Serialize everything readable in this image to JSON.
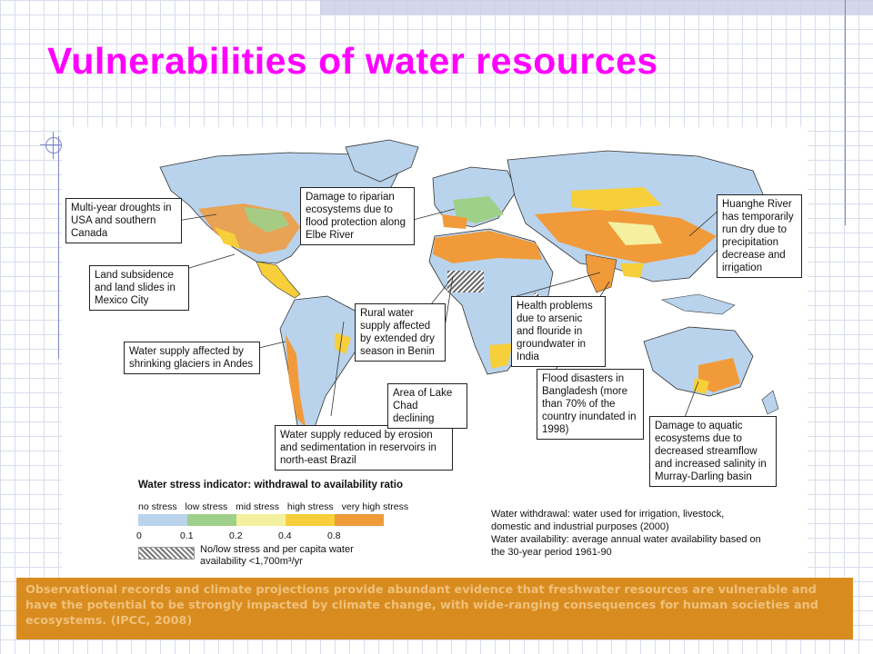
{
  "slide": {
    "title": "Vulnerabilities of water resources",
    "caption": "Observational records and climate projections provide abundant evidence that freshwater resources are vulnerable and have the potential to be strongly impacted by climate change, with wide-ranging consequences for human societies and ecosystems. (IPCC, 2008)"
  },
  "callouts": [
    {
      "id": "usa",
      "text": "Multi-year droughts in USA and southern Canada"
    },
    {
      "id": "mexico",
      "text": "Land subsidence and land slides in Mexico City"
    },
    {
      "id": "andes",
      "text": "Water supply affected by shrinking glaciers in Andes"
    },
    {
      "id": "brazil",
      "text": "Water supply reduced by erosion and sedimentation in reservoirs in north-east Brazil"
    },
    {
      "id": "elbe",
      "text": "Damage to riparian ecosystems due to flood protection along Elbe River"
    },
    {
      "id": "benin",
      "text": "Rural water supply affected by extended dry season in Benin"
    },
    {
      "id": "chad",
      "text": "Area of Lake Chad declining"
    },
    {
      "id": "india",
      "text": "Health problems due to arsenic and flouride in groundwater in India"
    },
    {
      "id": "bangladesh",
      "text": "Flood disasters in Bangladesh (more than 70% of the country inundated in 1998)"
    },
    {
      "id": "huanghe",
      "text": "Huanghe River has temporarily run dry due to precipitation decrease and irrigation"
    },
    {
      "id": "murray",
      "text": "Damage to aquatic ecosystems due to decreased streamflow and increased salinity in Murray-Darling basin"
    }
  ],
  "legend": {
    "title": "Water stress indicator: withdrawal to availability ratio",
    "categories": [
      "no stress",
      "low stress",
      "mid stress",
      "high stress",
      "very high stress"
    ],
    "colors": [
      "#b9d3ec",
      "#9fd08a",
      "#f5f0a0",
      "#f6cf3a",
      "#f19a3a"
    ],
    "ticks": [
      "0",
      "0.1",
      "0.2",
      "0.4",
      "0.8"
    ],
    "hatch_label": "No/low stress and per capita water availability <1,700m³/yr",
    "withdrawal_note": "Water withdrawal: water used for irrigation, livestock, domestic and industrial purposes (2000)",
    "availability_note": "Water availability: average annual water availability based on the 30-year period 1961-90"
  }
}
